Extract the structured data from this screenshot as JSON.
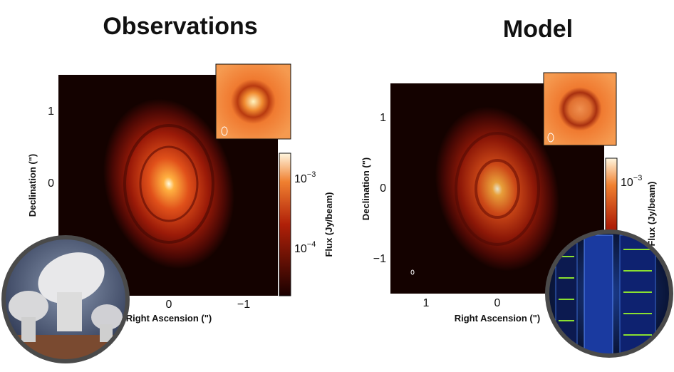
{
  "left": {
    "title": "Observations",
    "y_label": "Declination (\")",
    "x_label": "Right Ascension (\")",
    "y_ticks": [
      "1",
      "0"
    ],
    "x_ticks": [
      "0",
      "−1"
    ],
    "colorbar": {
      "label": "Flux (Jy/beam)",
      "ticks": [
        {
          "base": "10",
          "exponent": "−3"
        },
        {
          "base": "10",
          "exponent": "−4"
        }
      ]
    }
  },
  "right": {
    "title": "Model",
    "y_label": "Declination (\")",
    "x_label": "Right Ascension (\")",
    "y_ticks": [
      "1",
      "0",
      "−1"
    ],
    "x_ticks": [
      "1",
      "0"
    ],
    "colorbar": {
      "label": "Flux (Jy/beam)",
      "ticks": [
        {
          "base": "10",
          "exponent": "−3"
        }
      ]
    }
  }
}
